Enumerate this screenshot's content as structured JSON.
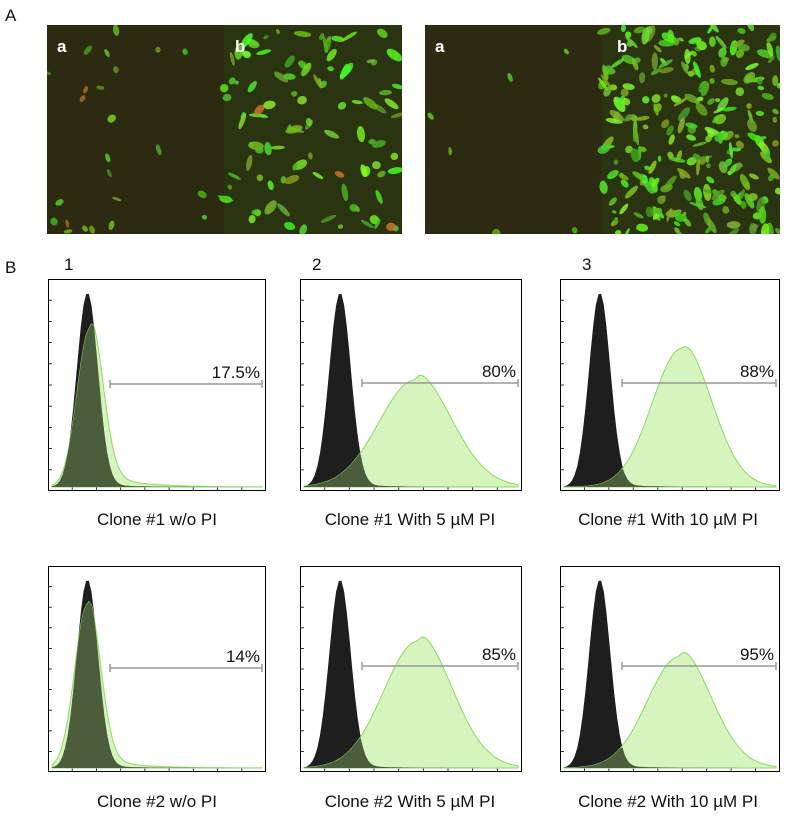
{
  "panel_a": {
    "letter": "A",
    "images": [
      {
        "sub_labels": [
          "a",
          "b"
        ]
      },
      {
        "sub_labels": [
          "a",
          "b"
        ]
      }
    ]
  },
  "panel_b": {
    "letter": "B",
    "columns": [
      "1",
      "2",
      "3"
    ]
  },
  "colors": {
    "control_fill": "#1e1e1e",
    "sample_fill": "#c7f0a8",
    "sample_stroke": "#8fd866",
    "overlap_fill": "#4b5d3a",
    "gate": "#9a9a9a"
  },
  "chart_data": [
    {
      "type": "area",
      "caption": "Clone #1 w/o PI",
      "gate_label": "17.5%",
      "gate_value": 17.5,
      "control_peak": [
        0.28,
        0.98
      ],
      "sample_peak": [
        0.3,
        0.8
      ],
      "sample_spread": 0.06,
      "sample_tail": 0.1
    },
    {
      "type": "area",
      "caption": "Clone #1 With 5 µM PI",
      "gate_label": "80%",
      "gate_value": 80,
      "control_peak": [
        0.28,
        0.98
      ],
      "sample_peak": [
        0.7,
        0.54
      ],
      "sample_spread": 0.17,
      "sample_tail": 0.05
    },
    {
      "type": "area",
      "caption": "Clone #1 With 10 µM PI",
      "gate_label": "88%",
      "gate_value": 88,
      "control_peak": [
        0.28,
        0.98
      ],
      "sample_peak": [
        0.76,
        0.7
      ],
      "sample_spread": 0.14,
      "sample_tail": 0.03
    },
    {
      "type": "area",
      "caption": "Clone #2 w/o PI",
      "gate_label": "14%",
      "gate_value": 14,
      "control_peak": [
        0.28,
        0.98
      ],
      "sample_peak": [
        0.28,
        0.85
      ],
      "sample_spread": 0.06,
      "sample_tail": 0.08
    },
    {
      "type": "area",
      "caption": "Clone #2 With 5 µM PI",
      "gate_label": "85%",
      "gate_value": 85,
      "control_peak": [
        0.28,
        0.98
      ],
      "sample_peak": [
        0.72,
        0.66
      ],
      "sample_spread": 0.16,
      "sample_tail": 0.05
    },
    {
      "type": "area",
      "caption": "Clone #2 With 10 µM PI",
      "gate_label": "95%",
      "gate_value": 95,
      "control_peak": [
        0.28,
        0.98
      ],
      "sample_peak": [
        0.74,
        0.58
      ],
      "sample_spread": 0.15,
      "sample_tail": 0.05
    }
  ]
}
